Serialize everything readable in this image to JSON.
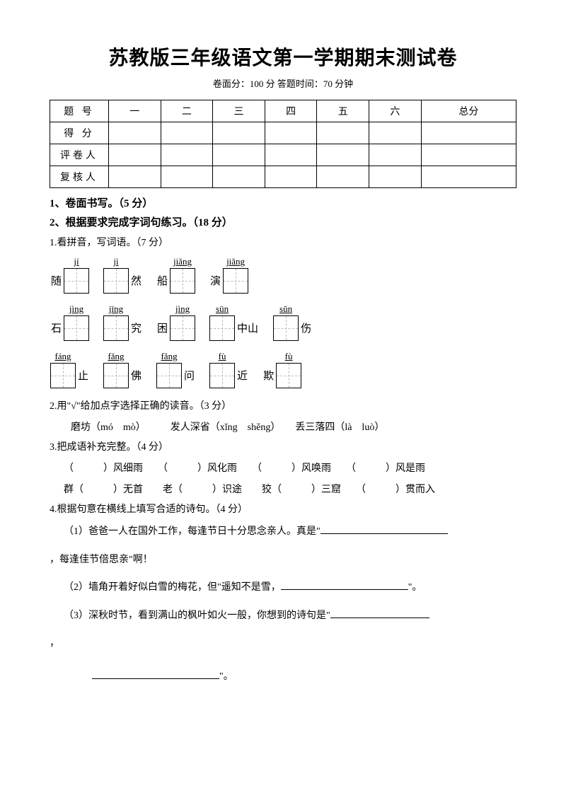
{
  "title": "苏教版三年级语文第一学期期末测试卷",
  "subtitle": "卷面分：100 分 答题时间：70 分钟",
  "scoreTable": {
    "headerRow": [
      "题 号",
      "一",
      "二",
      "三",
      "四",
      "五",
      "六",
      "总分"
    ],
    "rows": [
      "得 分",
      "评卷人",
      "复核人"
    ]
  },
  "sections": {
    "s1": "1、卷面书写。（5 分）",
    "s2": "2、根据要求完成字词句练习。（18 分）"
  },
  "q1": {
    "title": "1.看拼音，写词语。（7 分）",
    "row1": [
      {
        "left": "随",
        "pinyin": "jí"
      },
      {
        "pinyin": "jì",
        "right": "然"
      },
      {
        "left": "船",
        "pinyin": "jiǎng"
      },
      {
        "left": "演",
        "pinyin": "jiǎng"
      }
    ],
    "row2": [
      {
        "left": "石",
        "pinyin": "jìng"
      },
      {
        "pinyin": "jīng",
        "right": "究"
      },
      {
        "left": "困",
        "pinyin": "jìng"
      },
      {
        "pinyin": "sūn",
        "right": "中山"
      },
      {
        "pinyin": "sǔn",
        "right": "伤"
      }
    ],
    "row3": [
      {
        "pinyin": "fáng",
        "right": "止"
      },
      {
        "pinyin": "fǎng",
        "right": "佛"
      },
      {
        "pinyin": "fǎng",
        "right": "问"
      },
      {
        "pinyin": "fù",
        "right": "近"
      },
      {
        "left": "欺",
        "pinyin": "fù"
      }
    ]
  },
  "q2": {
    "title": "2.用\"√\"给加点字选择正确的读音。（3 分）",
    "items": "磨坊（mó　mò）　　　发人深省（xǐng　shěng）　　丢三落四（là　luò）"
  },
  "q3": {
    "title": "3.把成语补充完整。（4 分）",
    "line1": "（　　　）风细雨　　（　　　）风化雨　　（　　　）风唤雨　　（　　　）风是雨",
    "line2": "群（　　　）无首　　老（　　　）识途　　狡（　　　）三窟　　（　　　）贯而入"
  },
  "q4": {
    "title": "4.根据句意在横线上填写合适的诗句。（4 分）",
    "item1a": "（1）爸爸一人在国外工作，每逢节日十分思念亲人。真是\"",
    "item1b": "，每逢佳节倍思亲\"啊！",
    "item2a": "（2）墙角开着好似白雪的梅花，但\"遥知不是雪，",
    "item2b": "\"。",
    "item3a": "（3）深秋时节，看到满山的枫叶如火一般，你想到的诗句是\"",
    "item3b": "，",
    "item3c": "\"。"
  }
}
